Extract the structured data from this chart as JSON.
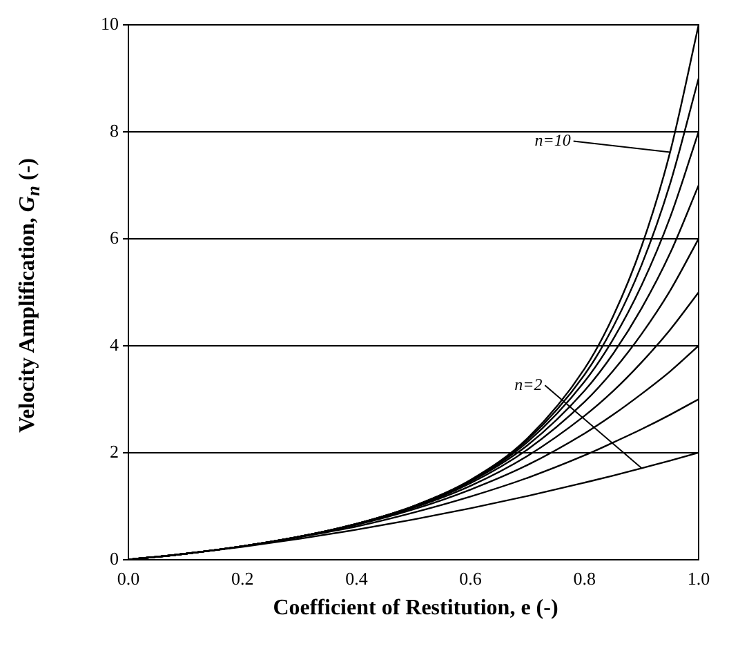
{
  "chart_data": {
    "type": "line",
    "xlabel": "Coefficient of Restitution, e (-)",
    "ylabel": "Velocity Amplification, G$_{n}$ (-)",
    "x": [
      0,
      0.1,
      0.2,
      0.3,
      0.4,
      0.5,
      0.6,
      0.7,
      0.8,
      0.85,
      0.9,
      0.95,
      1.0
    ],
    "xlim": [
      0,
      1
    ],
    "xticks": [
      {
        "value": 0,
        "label": "0.0"
      },
      {
        "value": 0.2,
        "label": "0.2"
      },
      {
        "value": 0.4,
        "label": "0.4"
      },
      {
        "value": 0.6,
        "label": "0.6"
      },
      {
        "value": 0.8,
        "label": "0.8"
      },
      {
        "value": 1,
        "label": "1.0"
      }
    ],
    "ylim": [
      0,
      10
    ],
    "yticks": [
      0,
      2,
      4,
      6,
      8,
      10
    ],
    "grid": "y",
    "legend": false,
    "marker": "none",
    "line_style": "solid",
    "series": [
      {
        "color": "#000000",
        "values": [
          0,
          0.11,
          0.24,
          0.39,
          0.56,
          0.75,
          0.96,
          1.19,
          1.44,
          1.57,
          1.71,
          1.85,
          2
        ]
      },
      {
        "color": "#000000",
        "values": [
          0,
          0.11,
          0.25,
          0.42,
          0.62,
          0.88,
          1.18,
          1.53,
          1.95,
          2.19,
          2.44,
          2.71,
          3
        ]
      },
      {
        "color": "#000000",
        "values": [
          0,
          0.11,
          0.25,
          0.43,
          0.65,
          0.94,
          1.31,
          1.77,
          2.36,
          2.71,
          3.1,
          3.52,
          4
        ]
      },
      {
        "color": "#000000",
        "values": [
          0,
          0.11,
          0.25,
          0.43,
          0.66,
          0.97,
          1.38,
          1.94,
          2.69,
          3.15,
          3.69,
          4.3,
          5
        ]
      },
      {
        "color": "#000000",
        "values": [
          0,
          0.11,
          0.25,
          0.43,
          0.66,
          0.98,
          1.43,
          2.06,
          2.95,
          3.53,
          4.22,
          5.03,
          6
        ]
      },
      {
        "color": "#000000",
        "values": [
          0,
          0.11,
          0.25,
          0.43,
          0.67,
          0.99,
          1.46,
          2.14,
          3.16,
          3.85,
          4.7,
          5.73,
          7
        ]
      },
      {
        "color": "#000000",
        "values": [
          0,
          0.11,
          0.25,
          0.43,
          0.67,
          1.0,
          1.47,
          2.2,
          3.33,
          4.12,
          5.13,
          6.4,
          8
        ]
      },
      {
        "color": "#000000",
        "values": [
          0,
          0.11,
          0.25,
          0.43,
          0.67,
          1.0,
          1.48,
          2.24,
          3.46,
          4.35,
          5.51,
          7.03,
          9
        ]
      },
      {
        "color": "#000000",
        "values": [
          0,
          0.11,
          0.25,
          0.43,
          0.67,
          1.0,
          1.49,
          2.27,
          3.57,
          4.55,
          5.86,
          7.62,
          10
        ]
      }
    ],
    "annotations": [
      {
        "text": "n=10",
        "x": 0.95,
        "y": 7.62
      },
      {
        "text": "n=2",
        "x": 0.9,
        "y": 1.71
      }
    ]
  }
}
